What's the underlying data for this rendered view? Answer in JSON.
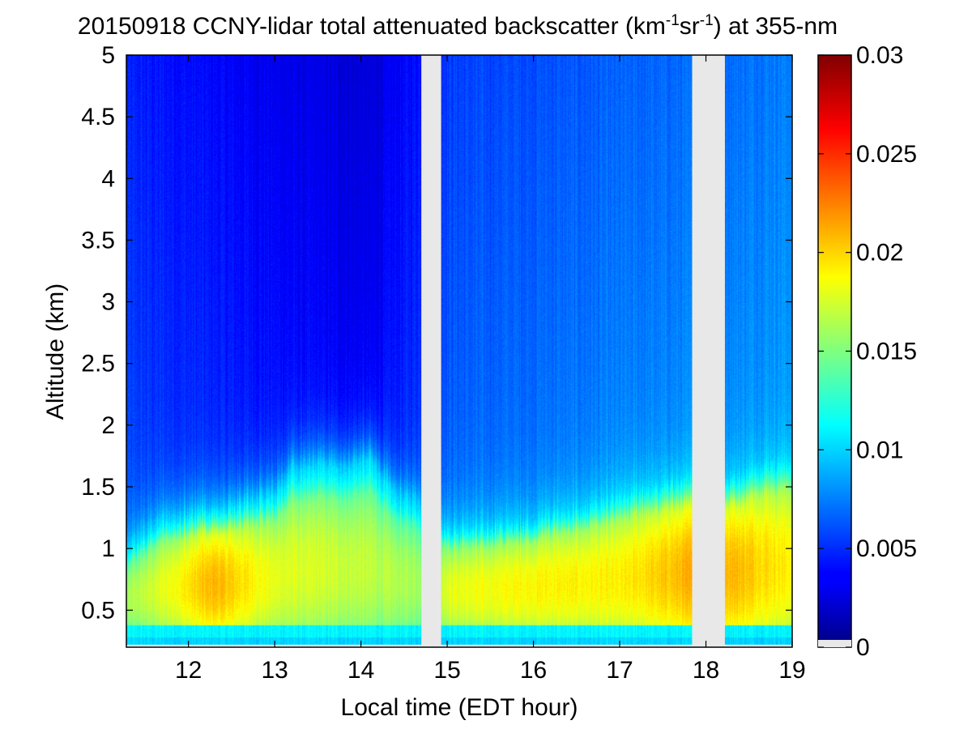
{
  "chart_data": {
    "type": "heatmap",
    "title": {
      "prefix": "20150918 CCNY-lidar total attenuated backscatter (km",
      "sup1": "-1",
      "mid": "sr",
      "sup2": "-1",
      "suffix": ") at 355-nm"
    },
    "xlabel": "Local time (EDT hour)",
    "ylabel": "Altitude (km)",
    "xlim": [
      11.28,
      19.0
    ],
    "ylim": [
      0.2,
      5.0
    ],
    "x_ticks": [
      12,
      13,
      14,
      15,
      16,
      17,
      18,
      19
    ],
    "x_tick_labels": [
      "12",
      "13",
      "14",
      "15",
      "16",
      "17",
      "18",
      "19"
    ],
    "y_ticks": [
      0.5,
      1,
      1.5,
      2,
      2.5,
      3,
      3.5,
      4,
      4.5,
      5
    ],
    "y_tick_labels": [
      "0.5",
      "1",
      "1.5",
      "2",
      "2.5",
      "3",
      "3.5",
      "4",
      "4.5",
      "5"
    ],
    "colorbar": {
      "range": [
        0,
        0.03
      ],
      "ticks": [
        0,
        0.005,
        0.01,
        0.015,
        0.02,
        0.025,
        0.03
      ],
      "tick_labels": [
        "0",
        "0.005",
        "0.01",
        "0.015",
        "0.02",
        "0.025",
        "0.03"
      ],
      "colormap": "jet"
    },
    "data_gaps": [
      {
        "x_start": 14.7,
        "x_end": 14.93
      },
      {
        "x_start": 17.84,
        "x_end": 18.22
      }
    ],
    "gap_color": "#e8e8e8",
    "surface_blind_zone_top_km": 0.28,
    "boundary_layer_top_km": {
      "x": [
        11.3,
        11.6,
        12.0,
        12.5,
        13.0,
        13.2,
        13.5,
        13.8,
        14.1,
        14.4,
        14.7,
        15.0,
        15.5,
        16.0,
        16.5,
        17.0,
        17.5,
        17.8,
        18.3,
        18.7,
        19.0
      ],
      "y": [
        1.0,
        1.2,
        1.3,
        1.35,
        1.45,
        1.65,
        1.68,
        1.65,
        1.75,
        1.45,
        1.35,
        1.15,
        1.2,
        1.25,
        1.35,
        1.45,
        1.55,
        1.6,
        1.6,
        1.7,
        1.75
      ]
    },
    "free_troposphere_value": {
      "x": [
        11.3,
        13.3,
        14.1,
        14.6,
        15.0,
        17.0,
        18.3,
        19.0
      ],
      "y": [
        0.0045,
        0.003,
        0.0025,
        0.004,
        0.0055,
        0.0065,
        0.007,
        0.0075
      ]
    },
    "boundary_layer_peak_value": {
      "x": [
        11.3,
        12.3,
        13.0,
        14.0,
        14.7,
        15.0,
        16.0,
        17.0,
        17.8,
        18.3,
        19.0
      ],
      "y": [
        0.016,
        0.021,
        0.018,
        0.017,
        0.016,
        0.018,
        0.019,
        0.019,
        0.021,
        0.021,
        0.019
      ]
    }
  }
}
